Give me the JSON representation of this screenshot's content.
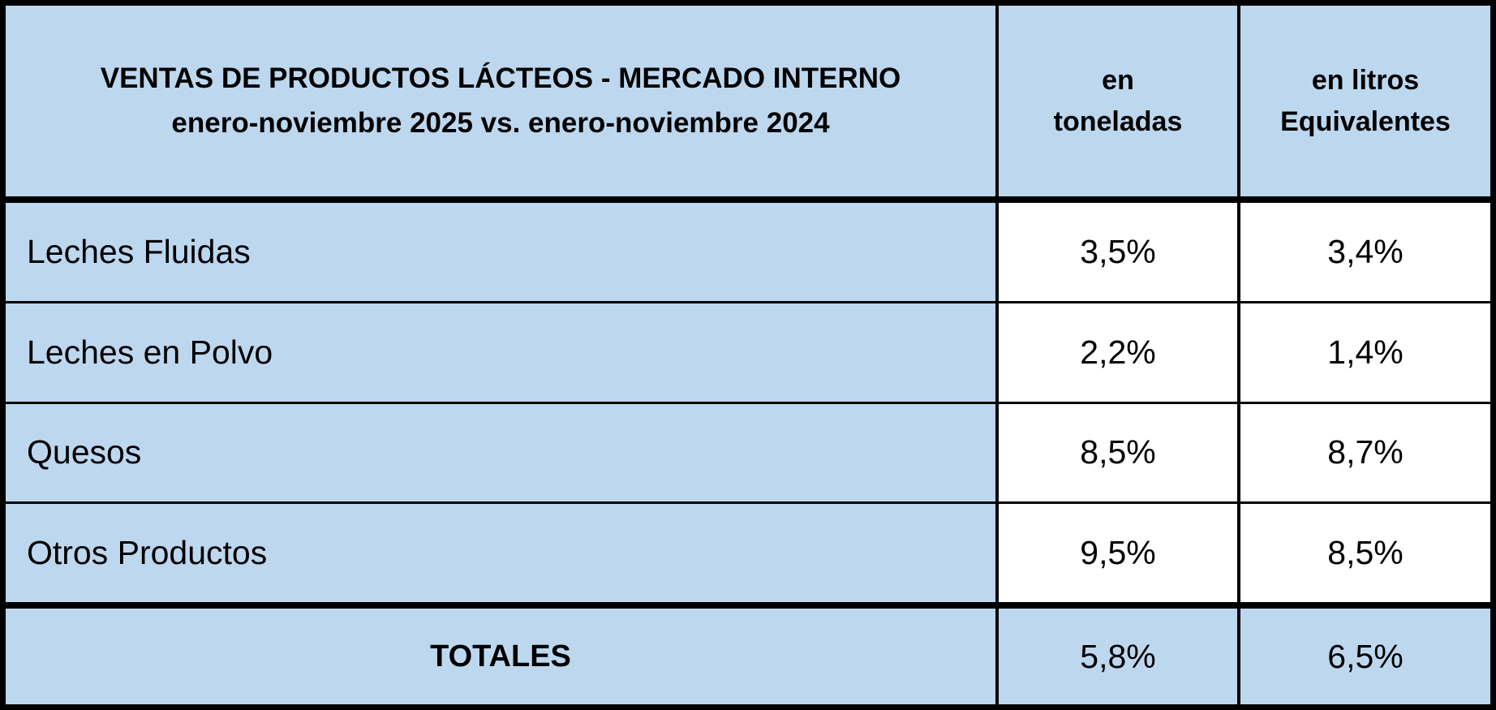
{
  "colors": {
    "table_bg": "#BDD7EE",
    "value_cell_bg": "#FFFFFF",
    "border": "#000000",
    "text": "#000000"
  },
  "chart_data": {
    "type": "table",
    "title": "VENTAS DE PRODUCTOS LÁCTEOS - MERCADO INTERNO",
    "subtitle": "enero-noviembre 2025 vs. enero-noviembre 2024",
    "columns": [
      "en\ntoneladas",
      "en litros\nEquivalentes"
    ],
    "rows": [
      {
        "label": "Leches Fluidas",
        "toneladas": "3,5%",
        "litros": "3,4%"
      },
      {
        "label": "Leches en Polvo",
        "toneladas": "2,2%",
        "litros": "1,4%"
      },
      {
        "label": "Quesos",
        "toneladas": "8,5%",
        "litros": "8,7%"
      },
      {
        "label": "Otros Productos",
        "toneladas": "9,5%",
        "litros": "8,5%"
      }
    ],
    "totals": {
      "label": "TOTALES",
      "toneladas": "5,8%",
      "litros": "6,5%"
    }
  }
}
